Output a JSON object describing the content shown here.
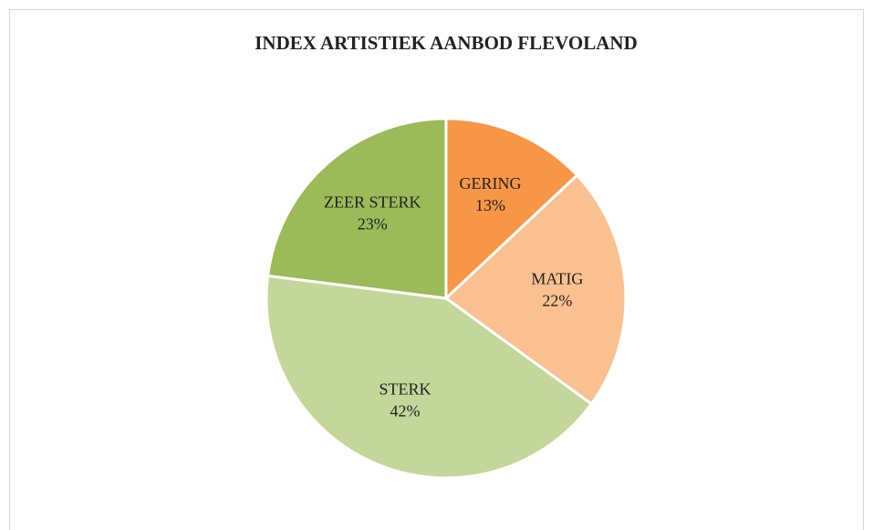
{
  "chart_data": {
    "type": "pie",
    "title": "INDEX ARTISTIEK AANBOD FLEVOLAND",
    "categories": [
      "GERING",
      "MATIG",
      "STERK",
      "ZEER STERK"
    ],
    "values": [
      13,
      22,
      42,
      23
    ],
    "value_labels": [
      "13%",
      "22%",
      "42%",
      "23%"
    ],
    "colors": [
      "#f79646",
      "#fac090",
      "#c4d79b",
      "#9bbb59"
    ]
  }
}
